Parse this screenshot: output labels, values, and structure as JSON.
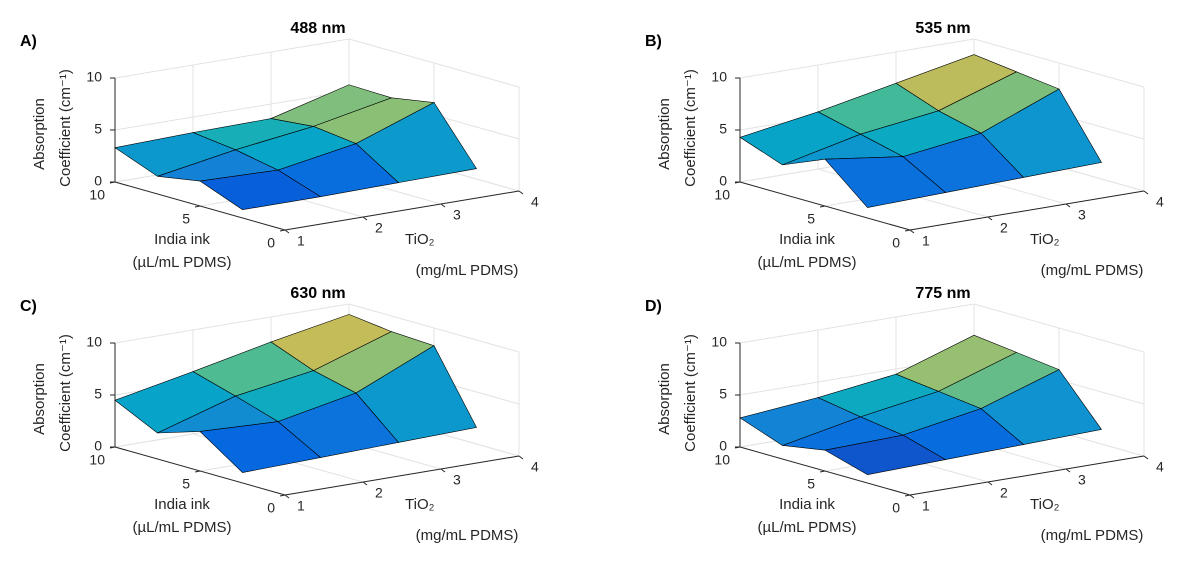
{
  "chart_data": [
    {
      "type": "surface",
      "label": "A)",
      "title": "488 nm",
      "x": [
        1,
        2,
        3,
        4
      ],
      "y": [
        2.5,
        5,
        7.5,
        10
      ],
      "z": [
        [
          0.8,
          0.8,
          0.9,
          1.0
        ],
        [
          2.4,
          2.2,
          3.5,
          6.2
        ],
        [
          1.7,
          3.0,
          4.0,
          5.5
        ],
        [
          3.3,
          3.5,
          3.6,
          5.6
        ]
      ],
      "xlabel": [
        "TiO₂",
        "(mg/mL PDMS)"
      ],
      "ylabel": [
        "India ink",
        "(µL/mL PDMS)"
      ],
      "zlabel": [
        "Absorption",
        "Coefficient (cm⁻¹)"
      ],
      "xlim": [
        1,
        4
      ],
      "ylim": [
        0,
        10
      ],
      "zlim": [
        0,
        10
      ],
      "xticks": [
        1,
        2,
        3,
        4
      ],
      "yticks": [
        0,
        5,
        10
      ],
      "zticks": [
        0,
        5,
        10
      ],
      "grid": true
    },
    {
      "type": "surface",
      "label": "B)",
      "title": "535 nm",
      "x": [
        1,
        2,
        3,
        4
      ],
      "y": [
        2.5,
        5,
        7.5,
        10
      ],
      "z": [
        [
          1.0,
          1.2,
          1.4,
          1.6
        ],
        [
          4.5,
          3.5,
          4.5,
          7.5
        ],
        [
          2.8,
          4.5,
          5.5,
          8.0
        ],
        [
          4.3,
          5.5,
          7.0,
          8.5
        ]
      ],
      "xlabel": [
        "TiO₂",
        "(mg/mL PDMS)"
      ],
      "ylabel": [
        "India ink",
        "(µL/mL PDMS)"
      ],
      "zlabel": [
        "Absorption",
        "Coefficient (cm⁻¹)"
      ],
      "xlim": [
        1,
        4
      ],
      "ylim": [
        0,
        10
      ],
      "zlim": [
        0,
        10
      ],
      "xticks": [
        1,
        2,
        3,
        4
      ],
      "yticks": [
        0,
        5,
        10
      ],
      "zticks": [
        0,
        5,
        10
      ],
      "grid": true
    },
    {
      "type": "surface",
      "label": "C)",
      "title": "630 nm",
      "x": [
        1,
        2,
        3,
        4
      ],
      "y": [
        2.5,
        5,
        7.5,
        10
      ],
      "z": [
        [
          1.0,
          1.2,
          1.4,
          1.6
        ],
        [
          3.8,
          3.5,
          5.0,
          8.3
        ],
        [
          2.5,
          4.8,
          6.0,
          8.5
        ],
        [
          4.5,
          6.0,
          7.6,
          9.0
        ]
      ],
      "xlabel": [
        "TiO₂",
        "(mg/mL PDMS)"
      ],
      "ylabel": [
        "India ink",
        "(µL/mL PDMS)"
      ],
      "zlabel": [
        "Absorption",
        "Coefficient (cm⁻¹)"
      ],
      "xlim": [
        1,
        4
      ],
      "ylim": [
        0,
        10
      ],
      "zlim": [
        0,
        10
      ],
      "xticks": [
        1,
        2,
        3,
        4
      ],
      "yticks": [
        0,
        5,
        10
      ],
      "zticks": [
        0,
        5,
        10
      ],
      "grid": true
    },
    {
      "type": "surface",
      "label": "D)",
      "title": "775 nm",
      "x": [
        1,
        2,
        3,
        4
      ],
      "y": [
        2.5,
        5,
        7.5,
        10
      ],
      "z": [
        [
          0.8,
          1.0,
          1.2,
          1.4
        ],
        [
          2.0,
          2.2,
          3.5,
          6.0
        ],
        [
          1.3,
          2.8,
          4.0,
          6.5
        ],
        [
          2.8,
          3.5,
          4.5,
          7.0
        ]
      ],
      "xlabel": [
        "TiO₂",
        "(mg/mL PDMS)"
      ],
      "ylabel": [
        "India ink",
        "(µL/mL PDMS)"
      ],
      "zlabel": [
        "Absorption",
        "Coefficient (cm⁻¹)"
      ],
      "xlim": [
        1,
        4
      ],
      "ylim": [
        0,
        10
      ],
      "zlim": [
        0,
        10
      ],
      "xticks": [
        1,
        2,
        3,
        4
      ],
      "yticks": [
        0,
        5,
        10
      ],
      "zticks": [
        0,
        5,
        10
      ],
      "grid": true
    }
  ]
}
